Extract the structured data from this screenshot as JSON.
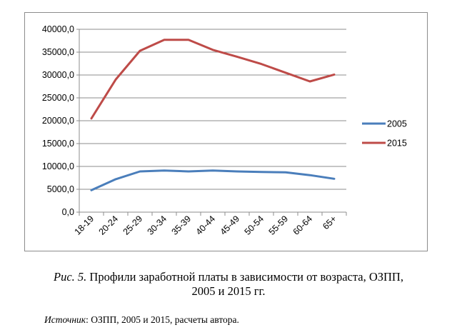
{
  "chart_data": {
    "type": "line",
    "categories": [
      "18-19",
      "20-24",
      "25-29",
      "30-34",
      "35-39",
      "40-44",
      "45-49",
      "50-54",
      "55-59",
      "60-64",
      "65+"
    ],
    "series": [
      {
        "name": "2005",
        "color": "#4a7ebb",
        "values": [
          4800,
          7200,
          8900,
          9100,
          8900,
          9100,
          8900,
          8800,
          8700,
          8100,
          7300
        ]
      },
      {
        "name": "2015",
        "color": "#be4b48",
        "values": [
          20500,
          29000,
          35300,
          37700,
          37700,
          35500,
          34000,
          32400,
          30500,
          28600,
          30100
        ]
      }
    ],
    "y_ticks": [
      "0,0",
      "5000,0",
      "10000,0",
      "15000,0",
      "20000,0",
      "25000,0",
      "30000,0",
      "35000,0",
      "40000,0"
    ],
    "ylim": [
      0,
      40000
    ],
    "grid": true,
    "legend_position": "right"
  },
  "caption": {
    "lead": "Рис. 5.",
    "text": " Профили заработной платы в зависимости от возраста, ОЗПП,",
    "line2": "2005 и 2015 гг."
  },
  "source": {
    "lead": "Источник",
    "text": ": ОЗПП, 2005 и 2015, расчеты автора."
  }
}
